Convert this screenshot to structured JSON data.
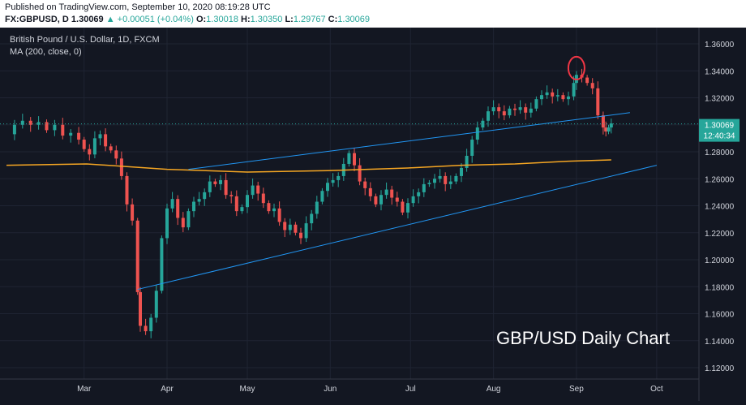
{
  "header": {
    "published": "Published on TradingView.com, September 10, 2020 08:19:28 UTC",
    "symbol": "FX:GBPUSD, D",
    "last": "1.30069",
    "change": "▲ +0.00051 (+0.04%)",
    "o_label": "O:",
    "o": "1.30018",
    "h_label": "H:",
    "h": "1.30350",
    "l_label": "L:",
    "l": "1.29767",
    "c_label": "C:",
    "c": "1.30069"
  },
  "legend": {
    "title": "British Pound / U.S. Dollar, 1D, FXCM",
    "indicator": "MA (200, close, 0)"
  },
  "price_label": "1.30069",
  "countdown_label": "12:40:34",
  "watermark": "GBP/USD Daily Chart",
  "colors": {
    "background": "#131722",
    "up": "#26a69a",
    "down": "#ef5350",
    "ma": "#f5a623",
    "trendline": "#2196f3",
    "highlight": "#f23645"
  },
  "chart_data": {
    "type": "candlestick",
    "title": "GBP/USD Daily Chart",
    "ylim": [
      1.11,
      1.37
    ],
    "yticks": [
      "1.36000",
      "1.34000",
      "1.32000",
      "1.30000",
      "1.28000",
      "1.26000",
      "1.24000",
      "1.22000",
      "1.20000",
      "1.18000",
      "1.16000",
      "1.14000",
      "1.12000"
    ],
    "xticks": [
      "Mar",
      "Apr",
      "May",
      "Jun",
      "Jul",
      "Aug",
      "Sep",
      "Oct"
    ],
    "xtick_days": [
      29,
      60,
      90,
      121,
      151,
      182,
      213,
      243
    ],
    "x_unit": "days since 2020-02-01",
    "close_series": [
      [
        0,
        1.293
      ],
      [
        3,
        1.3
      ],
      [
        6,
        1.303
      ],
      [
        9,
        1.3
      ],
      [
        12,
        1.302
      ],
      [
        15,
        1.296
      ],
      [
        18,
        1.3
      ],
      [
        21,
        1.292
      ],
      [
        24,
        1.294
      ],
      [
        27,
        1.289
      ],
      [
        29,
        1.282
      ],
      [
        31,
        1.278
      ],
      [
        33,
        1.29
      ],
      [
        35,
        1.293
      ],
      [
        37,
        1.284
      ],
      [
        39,
        1.281
      ],
      [
        41,
        1.275
      ],
      [
        43,
        1.262
      ],
      [
        45,
        1.241
      ],
      [
        47,
        1.229
      ],
      [
        49,
        1.176
      ],
      [
        50,
        1.151
      ],
      [
        52,
        1.147
      ],
      [
        54,
        1.157
      ],
      [
        56,
        1.177
      ],
      [
        58,
        1.216
      ],
      [
        60,
        1.238
      ],
      [
        62,
        1.245
      ],
      [
        64,
        1.231
      ],
      [
        66,
        1.224
      ],
      [
        68,
        1.236
      ],
      [
        70,
        1.243
      ],
      [
        72,
        1.245
      ],
      [
        74,
        1.25
      ],
      [
        76,
        1.258
      ],
      [
        78,
        1.256
      ],
      [
        80,
        1.259
      ],
      [
        82,
        1.248
      ],
      [
        84,
        1.247
      ],
      [
        86,
        1.236
      ],
      [
        88,
        1.239
      ],
      [
        90,
        1.248
      ],
      [
        92,
        1.255
      ],
      [
        94,
        1.249
      ],
      [
        96,
        1.242
      ],
      [
        98,
        1.236
      ],
      [
        100,
        1.238
      ],
      [
        102,
        1.228
      ],
      [
        104,
        1.222
      ],
      [
        106,
        1.226
      ],
      [
        108,
        1.22
      ],
      [
        110,
        1.216
      ],
      [
        112,
        1.227
      ],
      [
        114,
        1.234
      ],
      [
        116,
        1.243
      ],
      [
        118,
        1.251
      ],
      [
        120,
        1.257
      ],
      [
        122,
        1.259
      ],
      [
        124,
        1.262
      ],
      [
        126,
        1.271
      ],
      [
        128,
        1.279
      ],
      [
        130,
        1.27
      ],
      [
        132,
        1.258
      ],
      [
        134,
        1.253
      ],
      [
        136,
        1.247
      ],
      [
        138,
        1.241
      ],
      [
        140,
        1.248
      ],
      [
        142,
        1.252
      ],
      [
        144,
        1.246
      ],
      [
        146,
        1.243
      ],
      [
        148,
        1.235
      ],
      [
        150,
        1.242
      ],
      [
        152,
        1.247
      ],
      [
        154,
        1.25
      ],
      [
        156,
        1.256
      ],
      [
        158,
        1.257
      ],
      [
        160,
        1.26
      ],
      [
        162,
        1.262
      ],
      [
        164,
        1.256
      ],
      [
        166,
        1.258
      ],
      [
        168,
        1.262
      ],
      [
        170,
        1.268
      ],
      [
        172,
        1.277
      ],
      [
        174,
        1.289
      ],
      [
        176,
        1.298
      ],
      [
        178,
        1.303
      ],
      [
        180,
        1.31
      ],
      [
        182,
        1.313
      ],
      [
        184,
        1.31
      ],
      [
        186,
        1.307
      ],
      [
        188,
        1.312
      ],
      [
        190,
        1.311
      ],
      [
        192,
        1.313
      ],
      [
        194,
        1.309
      ],
      [
        196,
        1.312
      ],
      [
        198,
        1.319
      ],
      [
        200,
        1.322
      ],
      [
        202,
        1.324
      ],
      [
        204,
        1.321
      ],
      [
        206,
        1.322
      ],
      [
        208,
        1.319
      ],
      [
        210,
        1.321
      ],
      [
        212,
        1.331
      ],
      [
        213,
        1.337
      ],
      [
        215,
        1.335
      ],
      [
        217,
        1.331
      ],
      [
        219,
        1.327
      ],
      [
        221,
        1.307
      ],
      [
        223,
        1.298
      ],
      [
        224,
        1.295
      ],
      [
        225,
        1.298
      ],
      [
        226,
        1.301
      ]
    ],
    "series": [
      {
        "name": "MA (200, close, 0)",
        "points": [
          [
            0,
            1.27
          ],
          [
            30,
            1.271
          ],
          [
            60,
            1.267
          ],
          [
            90,
            1.265
          ],
          [
            120,
            1.266
          ],
          [
            150,
            1.268
          ],
          [
            170,
            1.27
          ],
          [
            190,
            1.271
          ],
          [
            210,
            1.273
          ],
          [
            226,
            1.274
          ]
        ]
      },
      {
        "name": "Upper trendline",
        "points": [
          [
            68,
            1.267
          ],
          [
            233,
            1.309
          ]
        ]
      },
      {
        "name": "Lower trendline",
        "points": [
          [
            49,
            1.178
          ],
          [
            243,
            1.27
          ]
        ]
      }
    ],
    "annotations": [
      {
        "type": "circle",
        "at": [
          213,
          1.342
        ],
        "note": "September high"
      }
    ],
    "current_price": 1.30069
  }
}
